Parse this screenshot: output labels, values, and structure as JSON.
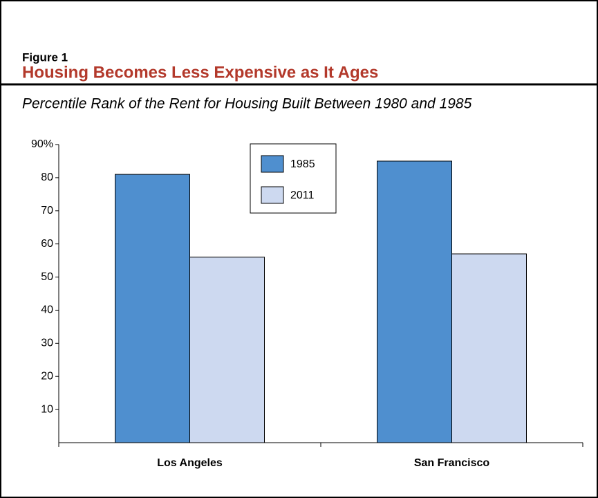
{
  "chart_data": {
    "type": "bar",
    "figure_label": "Figure 1",
    "title": "Housing Becomes Less Expensive as It Ages",
    "subtitle": "Percentile Rank of the Rent for Housing Built Between 1980 and 1985",
    "categories": [
      "Los Angeles",
      "San Francisco"
    ],
    "series": [
      {
        "name": "1985",
        "color": "#4f8fcf",
        "values": [
          81,
          85
        ]
      },
      {
        "name": "2011",
        "color": "#cdd9f0",
        "values": [
          56,
          57
        ]
      }
    ],
    "ylim": [
      0,
      90
    ],
    "yticks": [
      10,
      20,
      30,
      40,
      50,
      60,
      70,
      80,
      {
        "value": 90,
        "label": "90%"
      }
    ],
    "grid": false,
    "legend": "top-center"
  }
}
